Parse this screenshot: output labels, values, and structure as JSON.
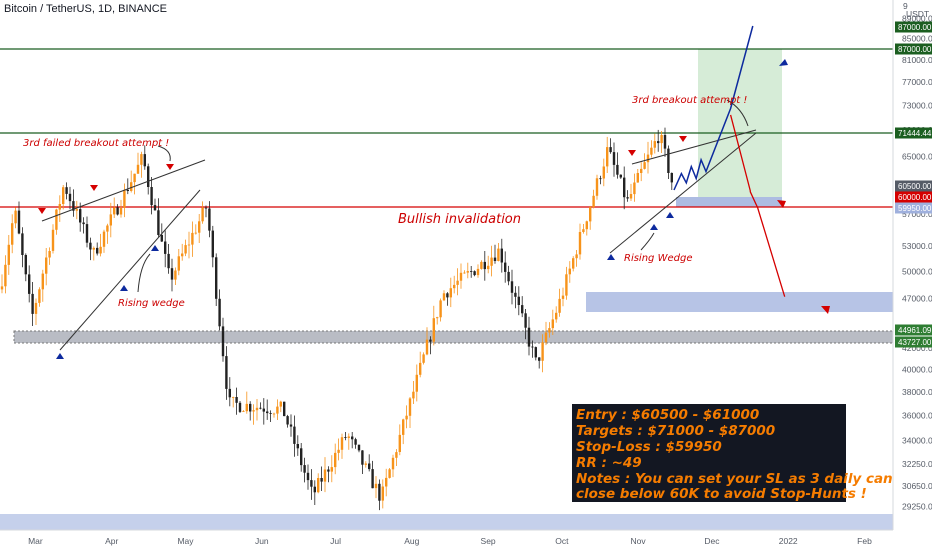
{
  "header": {
    "symbol_line": "Bitcoin / TetherUS, 1D, BINANCE",
    "currency": "USDT",
    "currency_top": "9"
  },
  "colors": {
    "up_candle": "#f7931a",
    "down_candle": "#222222",
    "red": "#d50000",
    "green_line": "#1b5e20",
    "blue_arrow": "#0d2a9e",
    "zone_blue": "#9fb0dd",
    "zone_grey": "#b9bcc4",
    "target_zone": "#c8e6c9",
    "note_bg": "#131722",
    "note_text": "#f57c00",
    "annotation": "#cc0000"
  },
  "annotations": {
    "failed_breakout": "3rd failed breakout attempt !",
    "rising_wedge_left": "Rising wedge",
    "rising_wedge_right": "Rising Wedge",
    "breakout_attempt": "3rd breakout attempt !",
    "invalidation": "Bullish invalidation"
  },
  "trade_note": {
    "lines": [
      "Entry : $60500 - $61000",
      "Targets : $71000 - $87000",
      "Stop-Loss : $59950",
      "RR : ~49",
      "Notes : You can set your SL as 3 daily candle",
      "close below 60K to avoid Stop-Hunts !"
    ]
  },
  "chart_data": {
    "type": "candlestick",
    "title": "Bitcoin / TetherUS, 1D, BINANCE",
    "y_scale": "log",
    "y_range": [
      28500,
      92000
    ],
    "y_ticks": [
      "89000.00",
      "85000.00",
      "81000.00",
      "77000.00",
      "73000.00",
      "69000.00",
      "65000.00",
      "61000.00",
      "57000.00",
      "53000.00",
      "50000.00",
      "47000.00",
      "44000.00",
      "42000.00",
      "40000.00",
      "38000.00",
      "36000.00",
      "34000.00",
      "32250.00",
      "30650.00",
      "29250.00"
    ],
    "x_ticks": [
      "Mar",
      "Apr",
      "May",
      "Jun",
      "Jul",
      "Aug",
      "Sep",
      "Oct",
      "Nov",
      "Dec",
      "2022",
      "Feb"
    ],
    "price_tags": [
      {
        "label": "87000.00",
        "color": "#1b5e20"
      },
      {
        "label": "87000.00",
        "color": "#1b5e20"
      },
      {
        "label": "71444.44",
        "color": "#1b5e20"
      },
      {
        "label": "60500.00",
        "color": "#555b66"
      },
      {
        "label": "60000.00",
        "color": "#d50000"
      },
      {
        "label": "59950.00",
        "color": "#9fb0dd"
      },
      {
        "label": "44961.09",
        "color": "#2e7d32"
      },
      {
        "label": "43727.00",
        "color": "#2e7d32"
      }
    ],
    "levels": {
      "target_high": 87000,
      "target_low": 71444.44,
      "entry": 60500,
      "invalidation": 60000,
      "stop_loss": 59950,
      "support_high": 44961.09,
      "support_low": 43727
    },
    "price_path": [
      {
        "date": "2021-02-15",
        "price": 48000
      },
      {
        "date": "2021-02-21",
        "price": 57500
      },
      {
        "date": "2021-02-28",
        "price": 45000
      },
      {
        "date": "2021-03-13",
        "price": 61000
      },
      {
        "date": "2021-03-25",
        "price": 52000
      },
      {
        "date": "2021-04-14",
        "price": 64800
      },
      {
        "date": "2021-04-25",
        "price": 49000
      },
      {
        "date": "2021-05-10",
        "price": 58000
      },
      {
        "date": "2021-05-19",
        "price": 37000
      },
      {
        "date": "2021-06-10",
        "price": 36500
      },
      {
        "date": "2021-06-22",
        "price": 30000
      },
      {
        "date": "2021-07-06",
        "price": 34500
      },
      {
        "date": "2021-07-20",
        "price": 29800
      },
      {
        "date": "2021-08-14",
        "price": 47500
      },
      {
        "date": "2021-09-06",
        "price": 52500
      },
      {
        "date": "2021-09-21",
        "price": 40500
      },
      {
        "date": "2021-10-01",
        "price": 47000
      },
      {
        "date": "2021-10-20",
        "price": 66000
      },
      {
        "date": "2021-10-28",
        "price": 58500
      },
      {
        "date": "2021-11-10",
        "price": 68500
      },
      {
        "date": "2021-11-16",
        "price": 60200
      }
    ],
    "projection_up": [
      {
        "date": "2021-11-16",
        "price": 60200
      },
      {
        "date": "2021-11-19",
        "price": 62500
      },
      {
        "date": "2021-11-21",
        "price": 61200
      },
      {
        "date": "2021-11-23",
        "price": 63500
      },
      {
        "date": "2021-11-25",
        "price": 61800
      },
      {
        "date": "2021-11-27",
        "price": 64500
      },
      {
        "date": "2021-11-29",
        "price": 62800
      },
      {
        "date": "2021-12-09",
        "price": 72500
      },
      {
        "date": "2021-12-18",
        "price": 87500
      }
    ],
    "projection_down": [
      {
        "date": "2021-12-09",
        "price": 71444
      },
      {
        "date": "2021-12-17",
        "price": 60100
      },
      {
        "date": "2021-12-17",
        "price": 59950
      },
      {
        "date": "2021-12-20",
        "price": 57800
      },
      {
        "date": "2021-12-31",
        "price": 47200
      }
    ]
  }
}
